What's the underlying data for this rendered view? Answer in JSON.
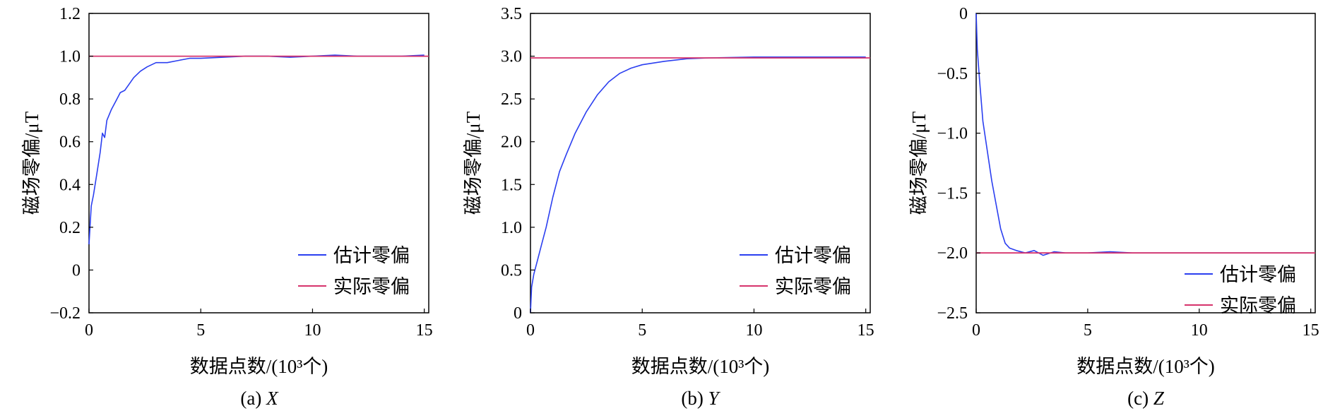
{
  "chart_data": [
    {
      "type": "line",
      "caption_prefix": "(a)",
      "caption_var": "X",
      "xlabel": "数据点数/(10³个)",
      "ylabel": "磁场零偏/μT",
      "xlim": [
        0,
        15.2
      ],
      "ylim": [
        -0.2,
        1.2
      ],
      "x_ticks": [
        "0",
        "5",
        "10",
        "15"
      ],
      "x_tick_values": [
        0,
        5,
        10,
        15
      ],
      "y_ticks": [
        "1.2",
        "1.0",
        "0.8",
        "0.6",
        "0.4",
        "0.2",
        "0",
        "−0.2"
      ],
      "y_tick_values": [
        1.2,
        1.0,
        0.8,
        0.6,
        0.4,
        0.2,
        0,
        -0.2
      ],
      "legend_position": "bottom-right",
      "colors": {
        "estimated": "#2b3ff0",
        "actual": "#d6336c"
      },
      "series": [
        {
          "name": "估计零偏",
          "x": [
            0,
            0.1,
            0.2,
            0.35,
            0.5,
            0.6,
            0.7,
            0.8,
            1.0,
            1.2,
            1.4,
            1.6,
            1.8,
            2.0,
            2.3,
            2.6,
            3.0,
            3.5,
            4.0,
            4.5,
            5.0,
            6.0,
            7.0,
            8.0,
            9.0,
            10.0,
            11.0,
            12.0,
            13.0,
            14.0,
            15.0
          ],
          "y": [
            0.12,
            0.3,
            0.35,
            0.45,
            0.55,
            0.64,
            0.62,
            0.7,
            0.75,
            0.79,
            0.83,
            0.84,
            0.87,
            0.9,
            0.93,
            0.95,
            0.97,
            0.97,
            0.98,
            0.99,
            0.99,
            0.995,
            1.0,
            1.0,
            0.995,
            1.0,
            1.005,
            1.0,
            1.0,
            1.0,
            1.005
          ]
        },
        {
          "name": "实际零偏",
          "x": [
            0,
            15.2
          ],
          "y": [
            1.0,
            1.0
          ]
        }
      ]
    },
    {
      "type": "line",
      "caption_prefix": "(b)",
      "caption_var": "Y",
      "xlabel": "数据点数/(10³个)",
      "ylabel": "磁场零偏/μT",
      "xlim": [
        0,
        15.2
      ],
      "ylim": [
        0,
        3.5
      ],
      "x_ticks": [
        "0",
        "5",
        "10",
        "15"
      ],
      "x_tick_values": [
        0,
        5,
        10,
        15
      ],
      "y_ticks": [
        "3.5",
        "3.0",
        "2.5",
        "2.0",
        "1.5",
        "1.0",
        "0.5",
        "0"
      ],
      "y_tick_values": [
        3.5,
        3.0,
        2.5,
        2.0,
        1.5,
        1.0,
        0.5,
        0
      ],
      "legend_position": "bottom-right",
      "colors": {
        "estimated": "#2b3ff0",
        "actual": "#d6336c"
      },
      "series": [
        {
          "name": "估计零偏",
          "x": [
            0,
            0.05,
            0.15,
            0.3,
            0.5,
            0.7,
            1.0,
            1.3,
            1.6,
            2.0,
            2.5,
            3.0,
            3.5,
            4.0,
            4.5,
            5.0,
            6.0,
            7.0,
            8.0,
            9.0,
            10.0,
            11.0,
            12.0,
            13.0,
            14.0,
            15.0
          ],
          "y": [
            0.0,
            0.3,
            0.45,
            0.6,
            0.8,
            1.0,
            1.35,
            1.65,
            1.85,
            2.1,
            2.35,
            2.55,
            2.7,
            2.8,
            2.86,
            2.9,
            2.94,
            2.97,
            2.98,
            2.985,
            2.99,
            2.99,
            2.99,
            2.99,
            2.99,
            2.99
          ]
        },
        {
          "name": "实际零偏",
          "x": [
            0,
            15.2
          ],
          "y": [
            2.98,
            2.98
          ]
        }
      ]
    },
    {
      "type": "line",
      "caption_prefix": "(c)",
      "caption_var": "Z",
      "xlabel": "数据点数/(10³个)",
      "ylabel": "磁场零偏/μT",
      "xlim": [
        0,
        15.2
      ],
      "ylim": [
        -2.5,
        0
      ],
      "x_ticks": [
        "0",
        "5",
        "10",
        "15"
      ],
      "x_tick_values": [
        0,
        5,
        10,
        15
      ],
      "y_ticks": [
        "0",
        "−0.5",
        "−1.0",
        "−1.5",
        "−2.0",
        "−2.5"
      ],
      "y_tick_values": [
        0,
        -0.5,
        -1.0,
        -1.5,
        -2.0,
        -2.5
      ],
      "legend_position": "bottom-right",
      "colors": {
        "estimated": "#2b3ff0",
        "actual": "#d6336c"
      },
      "series": [
        {
          "name": "估计零偏",
          "x": [
            0,
            0.05,
            0.15,
            0.3,
            0.5,
            0.7,
            0.9,
            1.1,
            1.3,
            1.5,
            1.8,
            2.2,
            2.6,
            3.0,
            3.5,
            4.0,
            5.0,
            6.0,
            7.0,
            8.0,
            9.0,
            10.0,
            11.0,
            12.0,
            13.0,
            14.0,
            15.0
          ],
          "y": [
            0.0,
            -0.3,
            -0.55,
            -0.9,
            -1.15,
            -1.4,
            -1.6,
            -1.8,
            -1.92,
            -1.96,
            -1.98,
            -2.0,
            -1.98,
            -2.02,
            -1.99,
            -2.0,
            -2.0,
            -1.99,
            -2.0,
            -2.0,
            -2.0,
            -2.0,
            -2.0,
            -2.0,
            -2.0,
            -2.0,
            -2.0
          ]
        },
        {
          "name": "实际零偏",
          "x": [
            0,
            15.2
          ],
          "y": [
            -2.0,
            -2.0
          ]
        }
      ]
    }
  ]
}
